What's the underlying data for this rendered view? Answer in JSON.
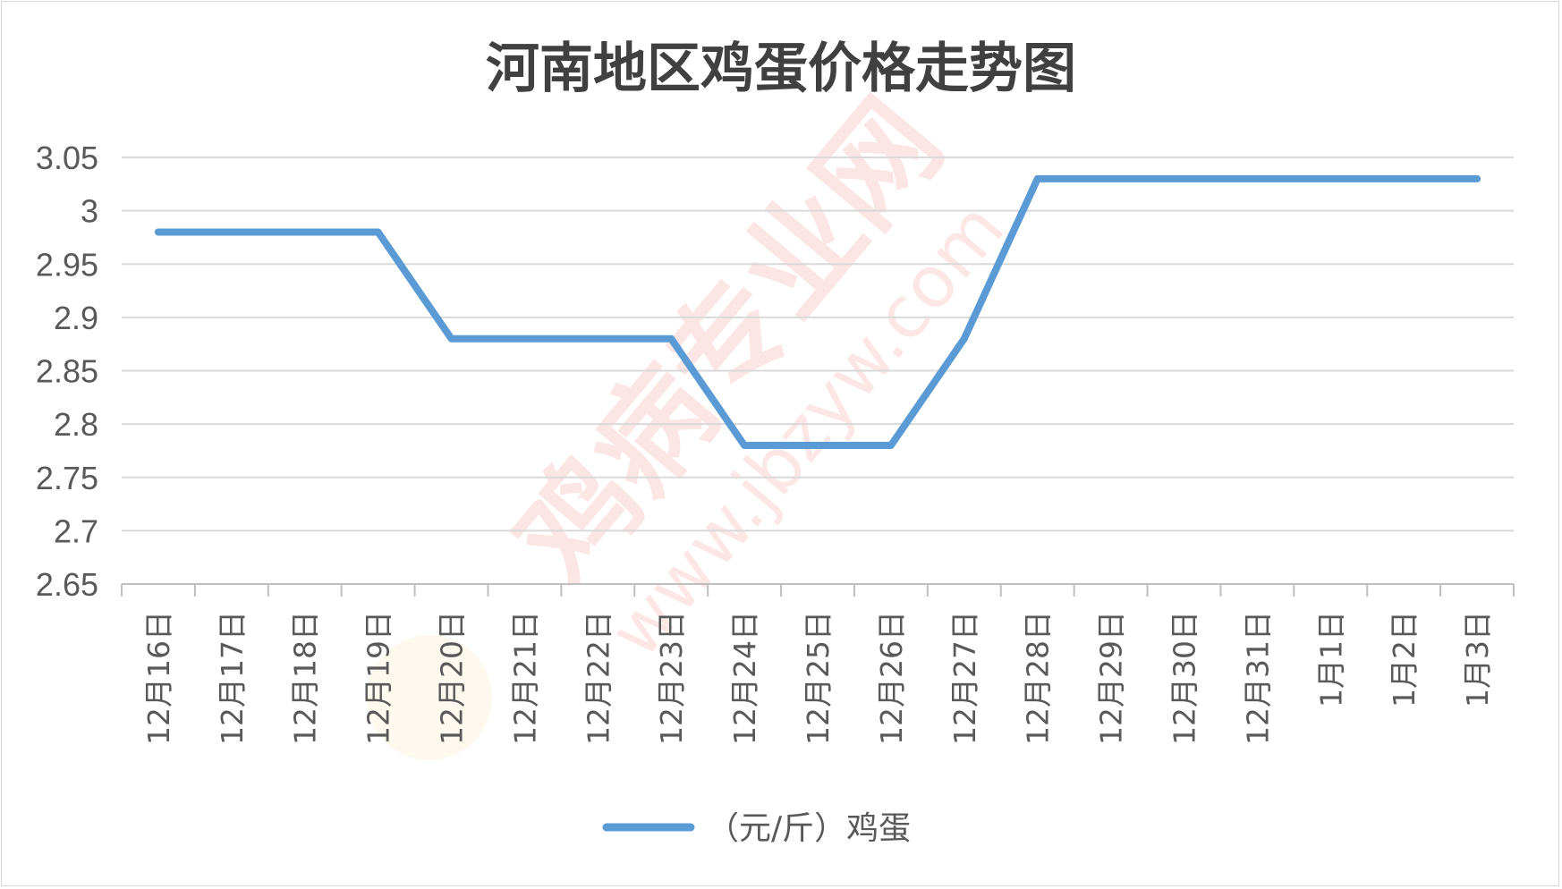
{
  "chart_data": {
    "type": "line",
    "title": "河南地区鸡蛋价格走势图",
    "categories": [
      "12月16日",
      "12月17日",
      "12月18日",
      "12月19日",
      "12月20日",
      "12月21日",
      "12月22日",
      "12月23日",
      "12月24日",
      "12月25日",
      "12月26日",
      "12月27日",
      "12月28日",
      "12月29日",
      "12月30日",
      "12月31日",
      "1月1日",
      "1月2日",
      "1月3日"
    ],
    "series": [
      {
        "name": "（元/斤）鸡蛋",
        "values": [
          2.98,
          2.98,
          2.98,
          2.98,
          2.88,
          2.88,
          2.88,
          2.88,
          2.78,
          2.78,
          2.78,
          2.88,
          3.03,
          3.03,
          3.03,
          3.03,
          3.03,
          3.03,
          3.03
        ],
        "color": "#5b9bd5"
      }
    ],
    "yticks": [
      "3.05",
      "3",
      "2.95",
      "2.9",
      "2.85",
      "2.8",
      "2.75",
      "2.7",
      "2.65"
    ],
    "ylim": [
      2.65,
      3.05
    ],
    "grid": true,
    "legend_position": "bottom"
  },
  "watermark": {
    "brand": "鸡病专业网",
    "url": "www.jbzyw.com",
    "color": "#e8453c"
  }
}
